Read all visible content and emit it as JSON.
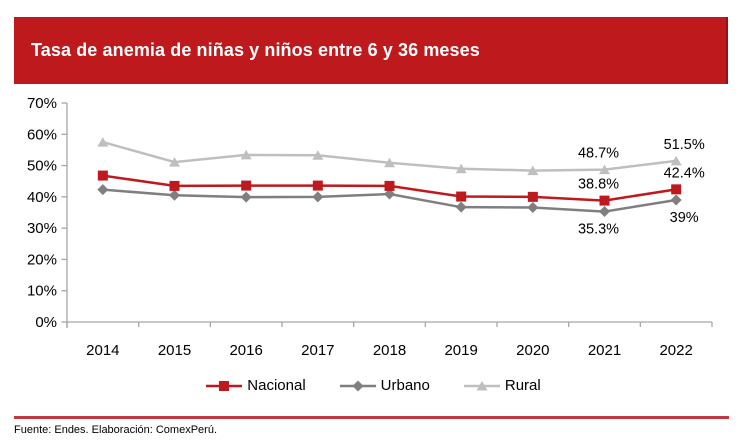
{
  "banner": {
    "title": "Tasa de anemia de niñas y niños entre 6 y 36 meses",
    "bg_color": "#BE191C"
  },
  "footer": {
    "source": "Fuente: Endes. Elaboración: ComexPerú.",
    "divider_color": "#C23740"
  },
  "colors": {
    "brand_red": "#BE191C",
    "urbano_gray": "#7F7F7F",
    "rural_gray": "#BFBFBF",
    "axis_gray": "#A6A6A6"
  },
  "chart_data": {
    "type": "line",
    "title": "Tasa de anemia de niñas y niños entre 6 y 36 meses",
    "categories": [
      "2014",
      "2015",
      "2016",
      "2017",
      "2018",
      "2019",
      "2020",
      "2021",
      "2022"
    ],
    "series": [
      {
        "name": "Nacional",
        "color": "#BE191C",
        "marker": "square",
        "label_placement": "above",
        "values": [
          46.8,
          43.5,
          43.6,
          43.6,
          43.5,
          40.1,
          40.0,
          38.8,
          42.4
        ],
        "point_labels": [
          {
            "index": 7,
            "text": "38.8%"
          },
          {
            "index": 8,
            "text": "42.4%"
          }
        ]
      },
      {
        "name": "Urbano",
        "color": "#7F7F7F",
        "marker": "diamond",
        "label_placement": "below",
        "values": [
          42.3,
          40.5,
          39.9,
          40.0,
          40.9,
          36.7,
          36.6,
          35.3,
          39.0
        ],
        "point_labels": [
          {
            "index": 7,
            "text": "35.3%"
          },
          {
            "index": 8,
            "text": "39%"
          }
        ]
      },
      {
        "name": "Rural",
        "color": "#BFBFBF",
        "marker": "triangle",
        "label_placement": "above",
        "values": [
          57.5,
          51.1,
          53.4,
          53.3,
          50.9,
          49.0,
          48.4,
          48.7,
          51.5
        ],
        "point_labels": [
          {
            "index": 7,
            "text": "48.7%"
          },
          {
            "index": 8,
            "text": "51.5%"
          }
        ]
      }
    ],
    "ylim": [
      0,
      70
    ],
    "ytick_step": 10,
    "ytick_labels": [
      "0%",
      "10%",
      "20%",
      "30%",
      "40%",
      "50%",
      "60%",
      "70%"
    ],
    "xlabel": "",
    "ylabel": "",
    "grid": false,
    "legend_position": "bottom"
  }
}
